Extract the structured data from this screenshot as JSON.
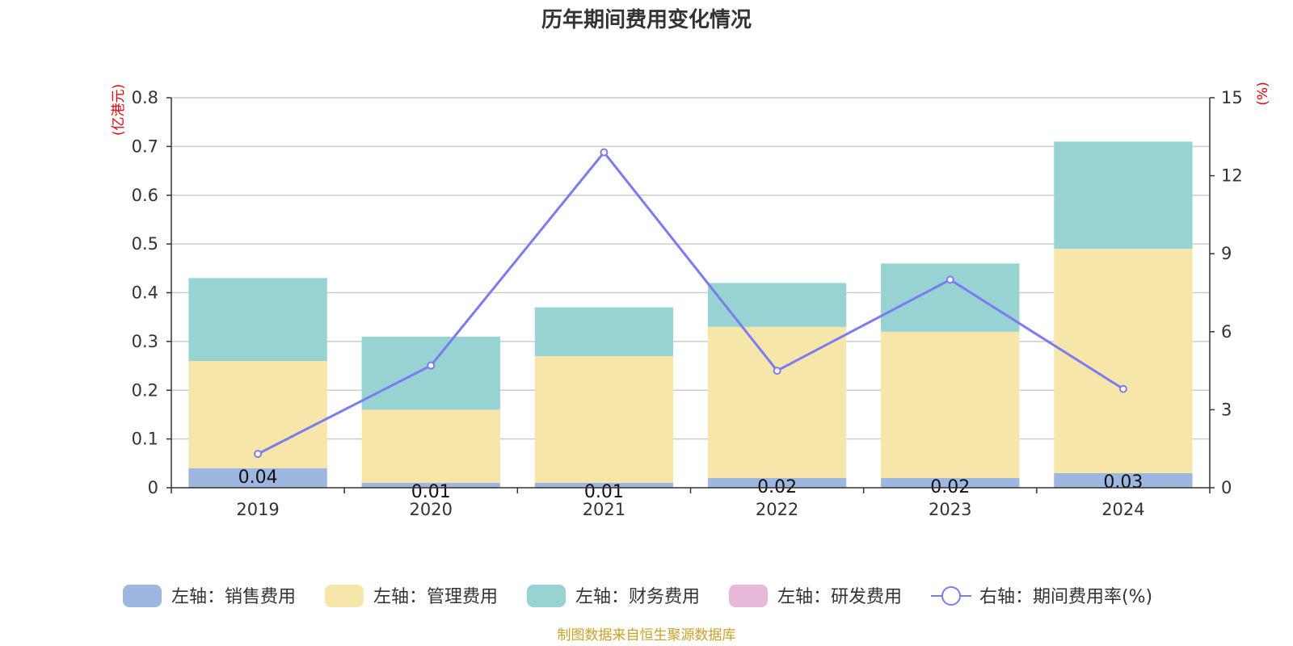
{
  "chart_data": {
    "type": "bar",
    "stacked": true,
    "title": "历年期间费用变化情况",
    "categories": [
      "2019",
      "2020",
      "2021",
      "2022",
      "2023",
      "2024"
    ],
    "y_left": {
      "unit": "(亿港元)",
      "ylim": [
        0,
        0.8
      ],
      "ticks": [
        "0",
        "0.1",
        "0.2",
        "0.3",
        "0.4",
        "0.5",
        "0.6",
        "0.7",
        "0.8"
      ]
    },
    "y_right": {
      "unit": "(%)",
      "ylim": [
        0,
        15
      ],
      "ticks": [
        "0",
        "3",
        "6",
        "9",
        "12",
        "15"
      ]
    },
    "grid": true,
    "legend_position": "bottom",
    "series": [
      {
        "name": "左轴：销售费用",
        "type": "bar",
        "axis": "left",
        "color": "#9db7e1",
        "values": [
          0.04,
          0.01,
          0.01,
          0.02,
          0.02,
          0.03
        ],
        "labels": [
          "0.04",
          "0.01",
          "0.01",
          "0.02",
          "0.02",
          "0.03"
        ]
      },
      {
        "name": "左轴：管理费用",
        "type": "bar",
        "axis": "left",
        "color": "#f7e6a9",
        "values": [
          0.22,
          0.15,
          0.26,
          0.31,
          0.3,
          0.46
        ]
      },
      {
        "name": "左轴：财务费用",
        "type": "bar",
        "axis": "left",
        "color": "#98d3d4",
        "values": [
          0.17,
          0.15,
          0.1,
          0.09,
          0.14,
          0.22
        ]
      },
      {
        "name": "左轴：研发费用",
        "type": "bar",
        "axis": "left",
        "color": "#e8b8d8",
        "values": [
          0,
          0,
          0,
          0,
          0,
          0
        ]
      },
      {
        "name": "右轴：期间费用率(%)",
        "type": "line",
        "axis": "right",
        "color": "#7a7cf0",
        "values": [
          1.3,
          4.7,
          12.9,
          4.5,
          8.0,
          3.8
        ]
      }
    ],
    "source": "制图数据来自恒生聚源数据库"
  }
}
